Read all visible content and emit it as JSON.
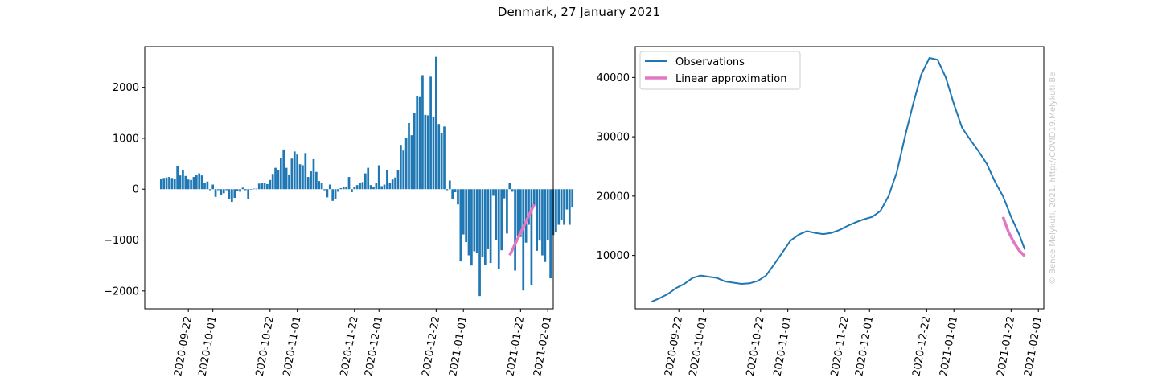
{
  "figure": {
    "title": "Denmark, 27 January 2021",
    "credit": "© Bence Melykuti, 2021. http://COVID19.Melykuti.Be"
  },
  "colors": {
    "bars": "#1f77b4",
    "observations": "#1f77b4",
    "approximation": "#e377c2"
  },
  "chart_data": [
    {
      "type": "bar",
      "name": "daily-change",
      "ylim": [
        -2350,
        2800
      ],
      "yticks": [
        -2000,
        -1000,
        0,
        1000,
        2000
      ],
      "yticklabels": [
        "−2000",
        "−1000",
        "0",
        "1000",
        "2000"
      ],
      "x_start": "2020-09-12",
      "x_end": "2021-01-27",
      "xlim": [
        "2020-09-06",
        "2021-02-03"
      ],
      "xticks": [
        "2020-09-22",
        "2020-10-01",
        "2020-10-22",
        "2020-11-01",
        "2020-11-22",
        "2020-12-01",
        "2020-12-22",
        "2021-01-01",
        "2021-01-22",
        "2021-02-01"
      ],
      "values": [
        200,
        220,
        230,
        240,
        220,
        200,
        450,
        270,
        370,
        260,
        190,
        180,
        240,
        280,
        310,
        270,
        130,
        150,
        -20,
        90,
        -150,
        -20,
        -110,
        -80,
        -20,
        -200,
        -250,
        -170,
        -40,
        -50,
        30,
        -20,
        -190,
        -10,
        10,
        10,
        110,
        120,
        130,
        100,
        180,
        300,
        420,
        370,
        610,
        780,
        420,
        290,
        600,
        740,
        680,
        490,
        470,
        710,
        240,
        350,
        590,
        340,
        160,
        120,
        -20,
        -160,
        90,
        -230,
        -200,
        -50,
        20,
        40,
        50,
        240,
        -60,
        40,
        80,
        130,
        140,
        310,
        420,
        80,
        40,
        120,
        470,
        60,
        90,
        380,
        120,
        190,
        230,
        380,
        870,
        760,
        1000,
        1300,
        1060,
        1500,
        1830,
        1810,
        2240,
        1460,
        1450,
        2210,
        1410,
        2600,
        1280,
        1110,
        1230,
        -20,
        170,
        -190,
        -60,
        -300,
        -1420,
        -890,
        -1040,
        -1300,
        -1500,
        -1220,
        -1250,
        -2100,
        -1330,
        -1490,
        -1180,
        -1450,
        -130,
        -1000,
        -1560,
        -1200,
        -180,
        -870,
        130,
        -50,
        -1600,
        -920,
        -940,
        -1990,
        -1050,
        -700,
        -1880,
        -330,
        -1210,
        -1010,
        -1300,
        -1430,
        -1000,
        -1750,
        -900,
        -850,
        -700,
        -600,
        -700,
        -400,
        -700,
        -350
      ]
    },
    {
      "type": "line",
      "name": "active-cases",
      "ylim": [
        1000,
        45200
      ],
      "yticks": [
        10000,
        20000,
        30000,
        40000
      ],
      "yticklabels": [
        "10000",
        "20000",
        "30000",
        "40000"
      ],
      "xlim": [
        "2020-09-06",
        "2021-02-03"
      ],
      "xticks": [
        "2020-09-22",
        "2020-10-01",
        "2020-10-22",
        "2020-11-01",
        "2020-11-22",
        "2020-12-01",
        "2020-12-22",
        "2021-01-01",
        "2021-01-22",
        "2021-02-01"
      ],
      "legend_position": "upper-left",
      "series": [
        {
          "name": "Observations",
          "points": [
            [
              "2020-09-12",
              2200
            ],
            [
              "2020-09-15",
              2800
            ],
            [
              "2020-09-18",
              3500
            ],
            [
              "2020-09-21",
              4500
            ],
            [
              "2020-09-24",
              5200
            ],
            [
              "2020-09-27",
              6200
            ],
            [
              "2020-09-30",
              6600
            ],
            [
              "2020-10-03",
              6400
            ],
            [
              "2020-10-06",
              6200
            ],
            [
              "2020-10-09",
              5600
            ],
            [
              "2020-10-12",
              5400
            ],
            [
              "2020-10-15",
              5200
            ],
            [
              "2020-10-18",
              5300
            ],
            [
              "2020-10-21",
              5700
            ],
            [
              "2020-10-24",
              6600
            ],
            [
              "2020-10-27",
              8500
            ],
            [
              "2020-10-30",
              10500
            ],
            [
              "2020-11-02",
              12500
            ],
            [
              "2020-11-05",
              13500
            ],
            [
              "2020-11-08",
              14100
            ],
            [
              "2020-11-11",
              13800
            ],
            [
              "2020-11-14",
              13600
            ],
            [
              "2020-11-17",
              13800
            ],
            [
              "2020-11-20",
              14300
            ],
            [
              "2020-11-23",
              15000
            ],
            [
              "2020-11-26",
              15600
            ],
            [
              "2020-11-29",
              16100
            ],
            [
              "2020-12-02",
              16500
            ],
            [
              "2020-12-05",
              17500
            ],
            [
              "2020-12-08",
              20000
            ],
            [
              "2020-12-11",
              24000
            ],
            [
              "2020-12-14",
              30000
            ],
            [
              "2020-12-17",
              35500
            ],
            [
              "2020-12-20",
              40500
            ],
            [
              "2020-12-23",
              43300
            ],
            [
              "2020-12-26",
              43000
            ],
            [
              "2020-12-29",
              40000
            ],
            [
              "2021-01-01",
              35500
            ],
            [
              "2021-01-04",
              31500
            ],
            [
              "2021-01-07",
              29500
            ],
            [
              "2021-01-10",
              27600
            ],
            [
              "2021-01-13",
              25500
            ],
            [
              "2021-01-16",
              22500
            ],
            [
              "2021-01-19",
              20000
            ],
            [
              "2021-01-22",
              16500
            ],
            [
              "2021-01-25",
              13500
            ],
            [
              "2021-01-27",
              11000
            ]
          ]
        },
        {
          "name": "Linear approximation",
          "points": [
            [
              "2021-01-19",
              16500
            ],
            [
              "2021-01-21",
              14000
            ],
            [
              "2021-01-23",
              12200
            ],
            [
              "2021-01-25",
              10800
            ],
            [
              "2021-01-27",
              9900
            ]
          ]
        }
      ]
    }
  ],
  "bar_overlay": {
    "points": [
      [
        "2021-01-18",
        -1300
      ],
      [
        "2021-01-27",
        -300
      ]
    ]
  }
}
